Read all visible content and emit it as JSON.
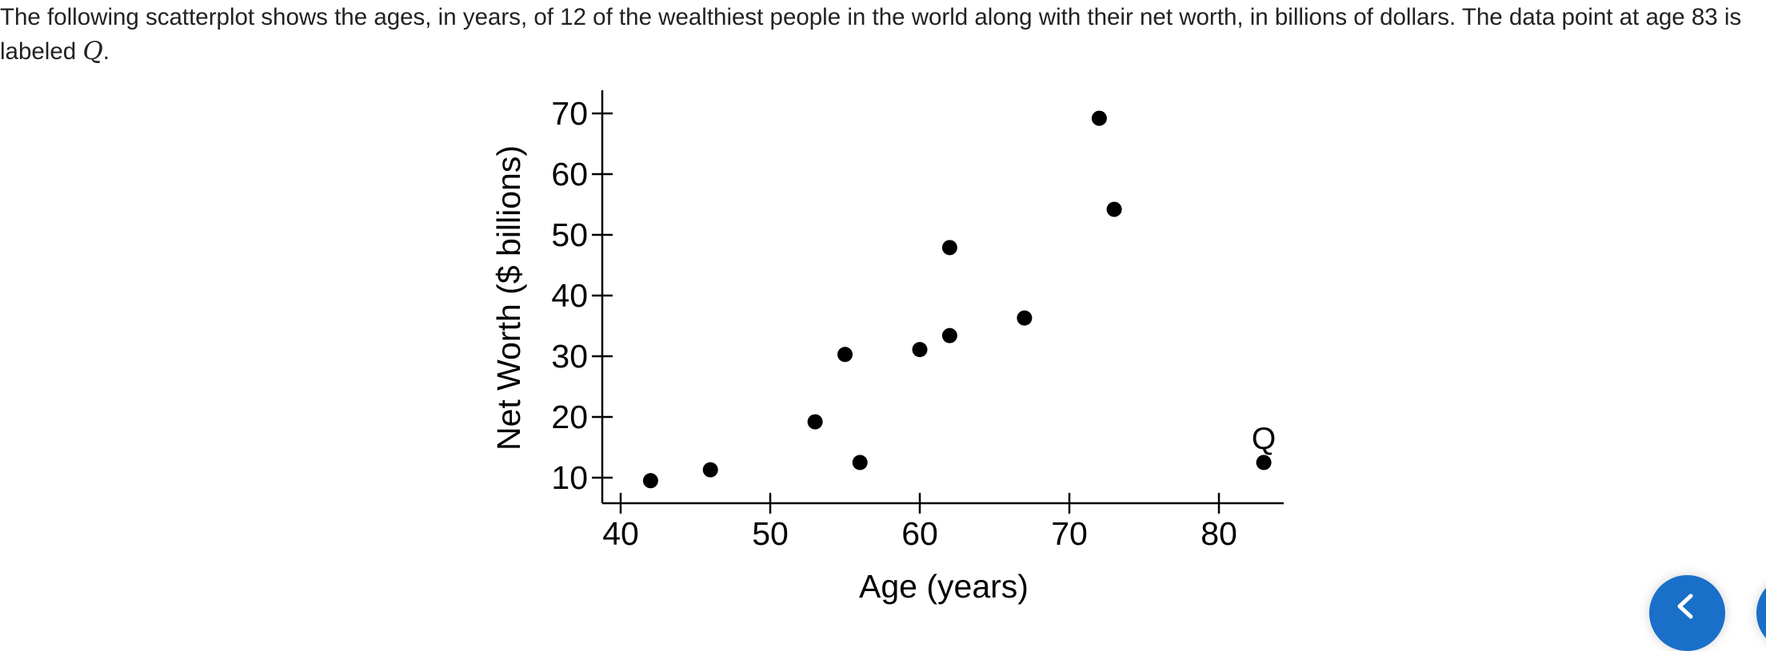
{
  "question": {
    "text_before": "The following scatterplot shows the ages, in years, of 12 of the wealthiest people in the world along with their net worth, in billions of dollars. The data point at age 83 is labeled ",
    "var_name": "Q",
    "text_after": "."
  },
  "chart_data": {
    "type": "scatter",
    "title": "",
    "xlabel": "Age (years)",
    "ylabel": "Net Worth ($ billions)",
    "xlim": [
      39,
      85
    ],
    "ylim": [
      6,
      74
    ],
    "xticks": [
      40,
      50,
      60,
      70,
      80
    ],
    "yticks": [
      10,
      20,
      30,
      40,
      50,
      60,
      70
    ],
    "grid": false,
    "x": [
      42,
      46,
      53,
      55,
      56,
      60,
      62,
      62,
      67,
      72,
      73,
      83
    ],
    "y": [
      9.5,
      11.3,
      19.2,
      30.3,
      12.5,
      31.1,
      47.9,
      33.4,
      36.3,
      69.2,
      54.2,
      12.5
    ],
    "annotations": [
      {
        "text": "Q",
        "x": 83,
        "y": 12.5
      }
    ]
  },
  "navigation": {
    "prev_icon": "chevron-left-icon",
    "next_icon": "chevron-right-icon",
    "accent_color": "#1a6fc9"
  }
}
